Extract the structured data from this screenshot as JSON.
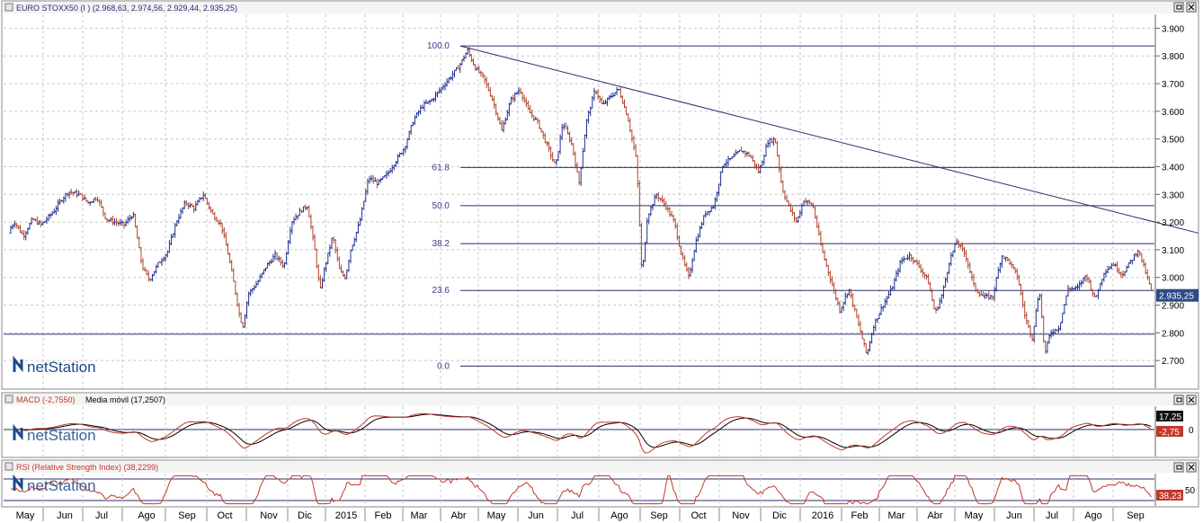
{
  "watermark": "netStation",
  "chart_data": [
    {
      "type": "ohlc",
      "title": "EURO STOXX50 (I ) (2.968,63, 2.974,56, 2.929,44, 2.935,25)",
      "last_value": 2935.25,
      "last_value_label": "2.935,25",
      "ylim": [
        2600,
        3950
      ],
      "y_ticks": [
        {
          "v": 2700,
          "label": "2.700"
        },
        {
          "v": 2800,
          "label": "2.800"
        },
        {
          "v": 2900,
          "label": "2.900"
        },
        {
          "v": 3000,
          "label": "3.000"
        },
        {
          "v": 3100,
          "label": "3.100"
        },
        {
          "v": 3200,
          "label": "3.200"
        },
        {
          "v": 3300,
          "label": "3.300"
        },
        {
          "v": 3400,
          "label": "3.400"
        },
        {
          "v": 3500,
          "label": "3.500"
        },
        {
          "v": 3600,
          "label": "3.600"
        },
        {
          "v": 3700,
          "label": "3.700"
        },
        {
          "v": 3800,
          "label": "3.800"
        },
        {
          "v": 3900,
          "label": "3.900"
        }
      ],
      "fibonacci": [
        {
          "label": "100.0",
          "v": 3836
        },
        {
          "label": "61.8",
          "v": 3397
        },
        {
          "label": "50.0",
          "v": 3259
        },
        {
          "label": "38.2",
          "v": 3122
        },
        {
          "label": "23.6",
          "v": 2953
        },
        {
          "label": "0.0",
          "v": 2680
        }
      ],
      "support_level": 2795,
      "trendline": {
        "from": {
          "date": "2015-04-13",
          "v": 3836
        },
        "to": {
          "date": "2016-09-30",
          "v": 3160
        }
      },
      "x_labels": [
        "May",
        "Jun",
        "Jul",
        "Ago",
        "Sep",
        "Oct",
        "Nov",
        "Dic",
        "2015",
        "Feb",
        "Mar",
        "Abr",
        "May",
        "Jun",
        "Jul",
        "Ago",
        "Sep",
        "Oct",
        "Nov",
        "Dic",
        "2016",
        "Feb",
        "Mar",
        "Abr",
        "May",
        "Jun",
        "Jul",
        "Ago",
        "Sep"
      ],
      "anchors": [
        {
          "x": 0,
          "v": 3160
        },
        {
          "x": 8,
          "v": 3200
        },
        {
          "x": 18,
          "v": 3150
        },
        {
          "x": 28,
          "v": 3210
        },
        {
          "x": 38,
          "v": 3190
        },
        {
          "x": 52,
          "v": 3240
        },
        {
          "x": 60,
          "v": 3280
        },
        {
          "x": 68,
          "v": 3310
        },
        {
          "x": 80,
          "v": 3300
        },
        {
          "x": 90,
          "v": 3270
        },
        {
          "x": 100,
          "v": 3290
        },
        {
          "x": 110,
          "v": 3210
        },
        {
          "x": 120,
          "v": 3200
        },
        {
          "x": 130,
          "v": 3190
        },
        {
          "x": 140,
          "v": 3230
        },
        {
          "x": 150,
          "v": 3040
        },
        {
          "x": 158,
          "v": 2990
        },
        {
          "x": 168,
          "v": 3050
        },
        {
          "x": 178,
          "v": 3090
        },
        {
          "x": 188,
          "v": 3200
        },
        {
          "x": 198,
          "v": 3270
        },
        {
          "x": 208,
          "v": 3250
        },
        {
          "x": 218,
          "v": 3300
        },
        {
          "x": 228,
          "v": 3230
        },
        {
          "x": 238,
          "v": 3190
        },
        {
          "x": 246,
          "v": 3080
        },
        {
          "x": 252,
          "v": 2980
        },
        {
          "x": 258,
          "v": 2870
        },
        {
          "x": 262,
          "v": 2820
        },
        {
          "x": 268,
          "v": 2940
        },
        {
          "x": 278,
          "v": 2980
        },
        {
          "x": 288,
          "v": 3040
        },
        {
          "x": 298,
          "v": 3080
        },
        {
          "x": 308,
          "v": 3040
        },
        {
          "x": 316,
          "v": 3200
        },
        {
          "x": 326,
          "v": 3240
        },
        {
          "x": 334,
          "v": 3260
        },
        {
          "x": 342,
          "v": 3100
        },
        {
          "x": 348,
          "v": 2950
        },
        {
          "x": 352,
          "v": 3020
        },
        {
          "x": 362,
          "v": 3150
        },
        {
          "x": 370,
          "v": 3020
        },
        {
          "x": 376,
          "v": 3000
        },
        {
          "x": 382,
          "v": 3100
        },
        {
          "x": 392,
          "v": 3200
        },
        {
          "x": 402,
          "v": 3360
        },
        {
          "x": 412,
          "v": 3340
        },
        {
          "x": 422,
          "v": 3370
        },
        {
          "x": 432,
          "v": 3420
        },
        {
          "x": 442,
          "v": 3470
        },
        {
          "x": 452,
          "v": 3570
        },
        {
          "x": 462,
          "v": 3620
        },
        {
          "x": 472,
          "v": 3640
        },
        {
          "x": 482,
          "v": 3680
        },
        {
          "x": 492,
          "v": 3720
        },
        {
          "x": 502,
          "v": 3760
        },
        {
          "x": 512,
          "v": 3820
        },
        {
          "x": 520,
          "v": 3760
        },
        {
          "x": 530,
          "v": 3720
        },
        {
          "x": 540,
          "v": 3640
        },
        {
          "x": 550,
          "v": 3530
        },
        {
          "x": 560,
          "v": 3640
        },
        {
          "x": 570,
          "v": 3680
        },
        {
          "x": 580,
          "v": 3600
        },
        {
          "x": 590,
          "v": 3560
        },
        {
          "x": 600,
          "v": 3480
        },
        {
          "x": 610,
          "v": 3400
        },
        {
          "x": 618,
          "v": 3560
        },
        {
          "x": 628,
          "v": 3480
        },
        {
          "x": 636,
          "v": 3340
        },
        {
          "x": 644,
          "v": 3560
        },
        {
          "x": 654,
          "v": 3680
        },
        {
          "x": 662,
          "v": 3620
        },
        {
          "x": 670,
          "v": 3650
        },
        {
          "x": 680,
          "v": 3680
        },
        {
          "x": 690,
          "v": 3580
        },
        {
          "x": 700,
          "v": 3420
        },
        {
          "x": 706,
          "v": 3000
        },
        {
          "x": 712,
          "v": 3220
        },
        {
          "x": 722,
          "v": 3300
        },
        {
          "x": 732,
          "v": 3260
        },
        {
          "x": 742,
          "v": 3200
        },
        {
          "x": 750,
          "v": 3080
        },
        {
          "x": 758,
          "v": 3000
        },
        {
          "x": 766,
          "v": 3130
        },
        {
          "x": 776,
          "v": 3230
        },
        {
          "x": 786,
          "v": 3260
        },
        {
          "x": 796,
          "v": 3410
        },
        {
          "x": 806,
          "v": 3430
        },
        {
          "x": 816,
          "v": 3460
        },
        {
          "x": 826,
          "v": 3440
        },
        {
          "x": 836,
          "v": 3380
        },
        {
          "x": 846,
          "v": 3490
        },
        {
          "x": 854,
          "v": 3500
        },
        {
          "x": 862,
          "v": 3320
        },
        {
          "x": 870,
          "v": 3250
        },
        {
          "x": 878,
          "v": 3200
        },
        {
          "x": 886,
          "v": 3280
        },
        {
          "x": 896,
          "v": 3260
        },
        {
          "x": 906,
          "v": 3100
        },
        {
          "x": 916,
          "v": 2990
        },
        {
          "x": 926,
          "v": 2880
        },
        {
          "x": 936,
          "v": 2960
        },
        {
          "x": 946,
          "v": 2840
        },
        {
          "x": 956,
          "v": 2720
        },
        {
          "x": 964,
          "v": 2830
        },
        {
          "x": 974,
          "v": 2900
        },
        {
          "x": 984,
          "v": 2960
        },
        {
          "x": 994,
          "v": 3060
        },
        {
          "x": 1004,
          "v": 3080
        },
        {
          "x": 1014,
          "v": 3040
        },
        {
          "x": 1024,
          "v": 2990
        },
        {
          "x": 1032,
          "v": 2870
        },
        {
          "x": 1040,
          "v": 2940
        },
        {
          "x": 1048,
          "v": 3060
        },
        {
          "x": 1056,
          "v": 3130
        },
        {
          "x": 1066,
          "v": 3080
        },
        {
          "x": 1076,
          "v": 2960
        },
        {
          "x": 1086,
          "v": 2930
        },
        {
          "x": 1096,
          "v": 2930
        },
        {
          "x": 1106,
          "v": 3080
        },
        {
          "x": 1114,
          "v": 3060
        },
        {
          "x": 1124,
          "v": 3000
        },
        {
          "x": 1132,
          "v": 2860
        },
        {
          "x": 1140,
          "v": 2780
        },
        {
          "x": 1148,
          "v": 2960
        },
        {
          "x": 1154,
          "v": 2720
        },
        {
          "x": 1160,
          "v": 2800
        },
        {
          "x": 1170,
          "v": 2820
        },
        {
          "x": 1180,
          "v": 2960
        },
        {
          "x": 1190,
          "v": 2960
        },
        {
          "x": 1200,
          "v": 3010
        },
        {
          "x": 1210,
          "v": 2920
        },
        {
          "x": 1220,
          "v": 3020
        },
        {
          "x": 1230,
          "v": 3050
        },
        {
          "x": 1240,
          "v": 3010
        },
        {
          "x": 1250,
          "v": 3060
        },
        {
          "x": 1258,
          "v": 3100
        },
        {
          "x": 1266,
          "v": 3020
        },
        {
          "x": 1274,
          "v": 2935
        }
      ]
    },
    {
      "type": "line",
      "title": "MACD (-2,7550)",
      "signal_label": "Media móvil (17,2507)",
      "y_ticks": [
        {
          "v": 0,
          "label": "0"
        }
      ],
      "series": [
        {
          "name": "MACD",
          "color": "#c0392b",
          "last_value": -2.755,
          "last_label": "-2,75"
        },
        {
          "name": "Media móvil",
          "color": "#000000",
          "last_value": 17.2507,
          "last_label": "17,25"
        }
      ]
    },
    {
      "type": "line",
      "title": "RSI (Relative Strength Index) (38,2299)",
      "y_ticks": [
        {
          "v": 50,
          "label": "50"
        }
      ],
      "series": [
        {
          "name": "RSI",
          "color": "#c0392b",
          "last_value": 38.2299,
          "last_label": "38,23"
        }
      ]
    }
  ]
}
